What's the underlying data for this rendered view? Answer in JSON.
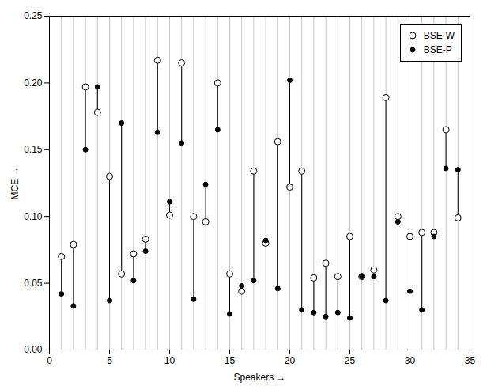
{
  "chart_data": {
    "type": "scatter",
    "xlabel": "Speakers",
    "ylabel": "MCE",
    "x": [
      1,
      2,
      3,
      4,
      5,
      6,
      7,
      8,
      9,
      10,
      11,
      12,
      13,
      14,
      15,
      16,
      17,
      18,
      19,
      20,
      21,
      22,
      23,
      24,
      25,
      26,
      27,
      28,
      29,
      30,
      31,
      32,
      33,
      34
    ],
    "series": [
      {
        "name": "BSE-W",
        "color": "white",
        "marker": "circle",
        "values": [
          0.07,
          0.079,
          0.197,
          0.178,
          0.13,
          0.057,
          0.072,
          0.083,
          0.217,
          0.101,
          0.215,
          0.1,
          0.096,
          0.2,
          0.057,
          0.044,
          0.134,
          0.08,
          0.156,
          0.122,
          0.134,
          0.054,
          0.065,
          0.055,
          0.085,
          0.055,
          0.06,
          0.189,
          0.1,
          0.085,
          0.088,
          0.088,
          0.165,
          0.099
        ]
      },
      {
        "name": "BSE-P",
        "color": "black",
        "marker": "circle",
        "values": [
          0.042,
          0.033,
          0.15,
          0.197,
          0.037,
          0.17,
          0.052,
          0.074,
          0.163,
          0.111,
          0.155,
          0.038,
          0.124,
          0.165,
          0.027,
          0.048,
          0.052,
          0.082,
          0.046,
          0.202,
          0.03,
          0.028,
          0.025,
          0.028,
          0.024,
          0.055,
          0.055,
          0.037,
          0.096,
          0.044,
          0.03,
          0.085,
          0.136,
          0.135
        ]
      }
    ],
    "xlim": [
      0,
      35
    ],
    "ylim": [
      0,
      0.25
    ],
    "xticks": [
      0,
      5,
      10,
      15,
      20,
      25,
      30,
      35
    ],
    "yticks": [
      {
        "value": 0,
        "label": "0.00"
      },
      0.05,
      {
        "value": 0.1,
        "label": "0.10"
      },
      0.15,
      {
        "value": 0.2,
        "label": "0.20"
      },
      0.25
    ],
    "grid": true,
    "legend": "upper right"
  }
}
